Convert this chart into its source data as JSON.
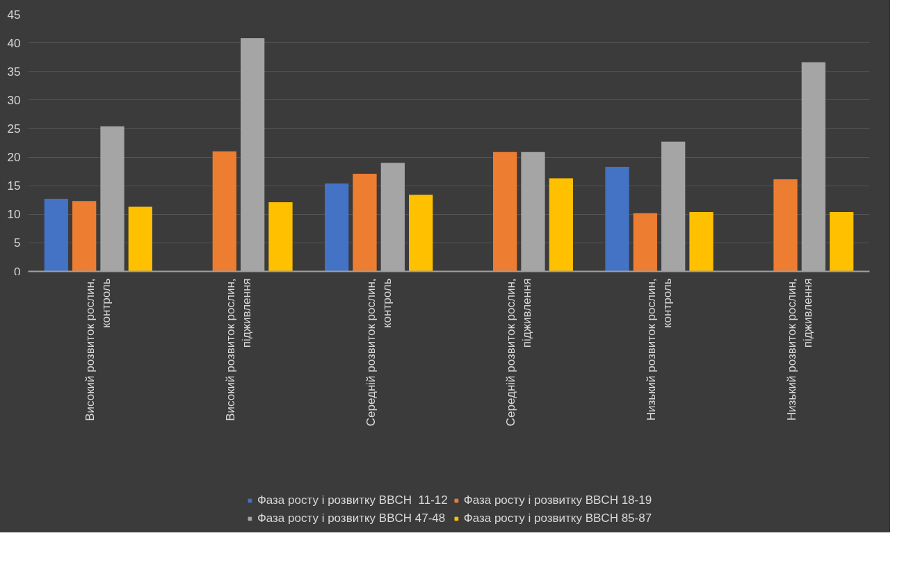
{
  "chart_data": {
    "type": "bar",
    "categories": [
      "Високий розвиток рослин, контроль",
      "Високий розвиток рослин, підживлення",
      "Середній розвиток рослин, контроль",
      "Середній розвиток рослин, підживлення",
      "Низький розвиток рослин, контроль",
      "Низький розвиток рослин, підживлення"
    ],
    "series": [
      {
        "name": "Фаза росту і розвитку BBCH  11-12",
        "color": "#4472c4",
        "values": [
          12.7,
          null,
          15.4,
          null,
          18.3,
          null
        ]
      },
      {
        "name": "Фаза росту і розвитку BBCH 18-19",
        "color": "#ed7d31",
        "values": [
          12.3,
          21.0,
          17.1,
          20.9,
          10.2,
          16.1
        ]
      },
      {
        "name": "Фаза росту і розвитку BBCH 47-48",
        "color": "#a5a5a5",
        "values": [
          25.4,
          40.8,
          19.0,
          20.9,
          22.7,
          36.6
        ]
      },
      {
        "name": "Фаза росту і розвитку BBCH 85-87",
        "color": "#ffc000",
        "values": [
          11.3,
          12.1,
          13.4,
          16.3,
          10.4,
          10.4
        ]
      }
    ],
    "ylim": [
      0,
      45
    ],
    "yticks": [
      0,
      5,
      10,
      15,
      20,
      25,
      30,
      35,
      40,
      45
    ],
    "grid": "y",
    "legend": "bottom"
  }
}
